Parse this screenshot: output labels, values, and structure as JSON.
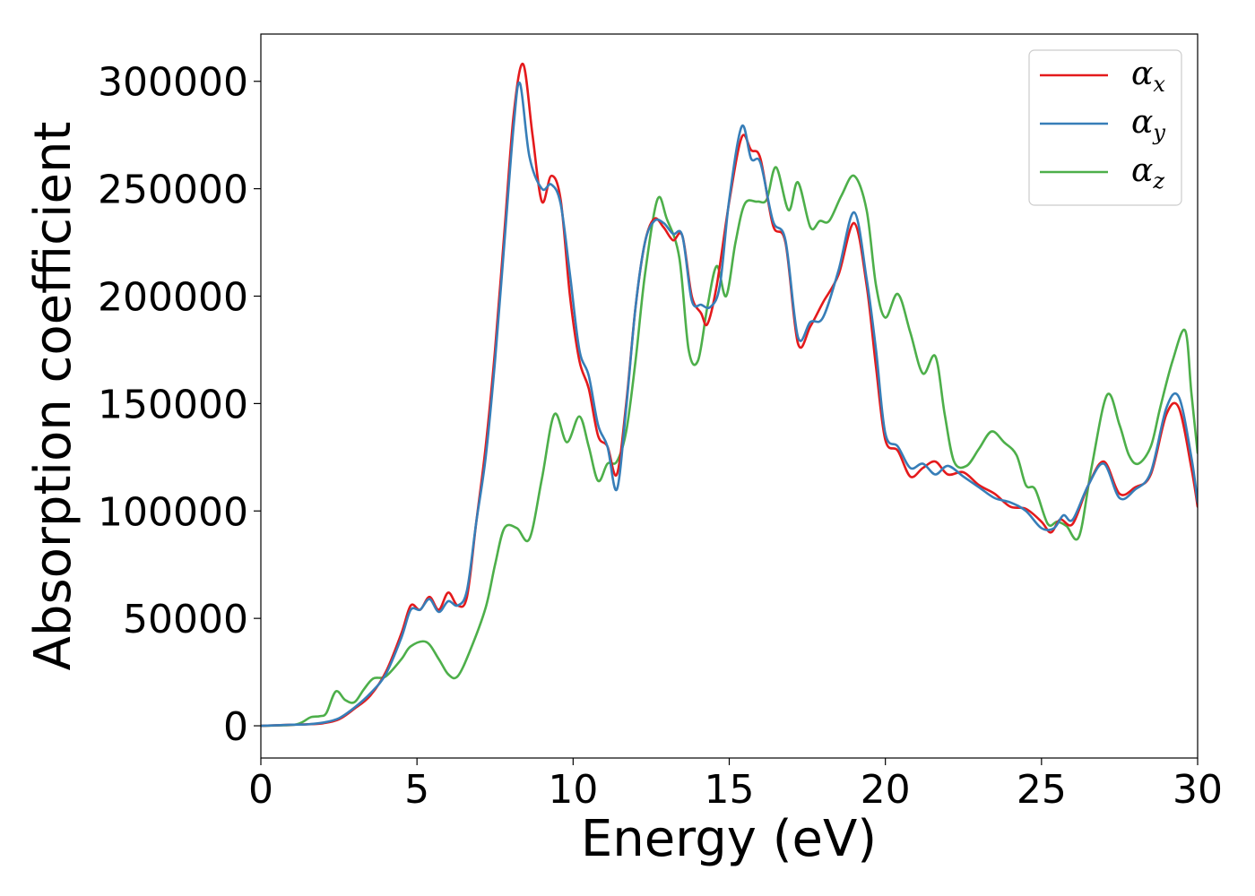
{
  "chart_data": {
    "type": "line",
    "title": "",
    "xlabel": "Energy (eV)",
    "ylabel": "Absorption coefficient",
    "xlim": [
      0,
      30
    ],
    "ylim": [
      -15000,
      322000
    ],
    "x_ticks": [
      0,
      5,
      10,
      15,
      20,
      25,
      30
    ],
    "y_ticks": [
      0,
      50000,
      100000,
      150000,
      200000,
      250000,
      300000
    ],
    "grid": false,
    "legend_position": "top-right",
    "series": [
      {
        "name": "α_x",
        "legend_base": "α",
        "legend_sub": "x",
        "color": "#e41a1c",
        "points": [
          [
            0,
            0
          ],
          [
            1,
            500
          ],
          [
            1.5,
            700
          ],
          [
            2,
            1200
          ],
          [
            2.5,
            3000
          ],
          [
            3,
            8000
          ],
          [
            3.5,
            14000
          ],
          [
            4,
            25000
          ],
          [
            4.5,
            43000
          ],
          [
            4.8,
            56000
          ],
          [
            5.1,
            54000
          ],
          [
            5.4,
            60000
          ],
          [
            5.7,
            54000
          ],
          [
            6,
            62000
          ],
          [
            6.3,
            56000
          ],
          [
            6.6,
            60000
          ],
          [
            6.9,
            95000
          ],
          [
            7.2,
            130000
          ],
          [
            7.5,
            175000
          ],
          [
            7.8,
            230000
          ],
          [
            8.1,
            285000
          ],
          [
            8.4,
            308000
          ],
          [
            8.7,
            275000
          ],
          [
            9,
            244000
          ],
          [
            9.3,
            256000
          ],
          [
            9.6,
            245000
          ],
          [
            9.9,
            200000
          ],
          [
            10.2,
            170000
          ],
          [
            10.5,
            157000
          ],
          [
            10.8,
            135000
          ],
          [
            11.1,
            130000
          ],
          [
            11.4,
            117000
          ],
          [
            11.7,
            150000
          ],
          [
            12,
            195000
          ],
          [
            12.3,
            225000
          ],
          [
            12.6,
            236000
          ],
          [
            12.9,
            232000
          ],
          [
            13.2,
            226000
          ],
          [
            13.5,
            228000
          ],
          [
            13.8,
            200000
          ],
          [
            14.1,
            192000
          ],
          [
            14.3,
            187000
          ],
          [
            14.6,
            205000
          ],
          [
            15,
            244000
          ],
          [
            15.4,
            274000
          ],
          [
            15.7,
            268000
          ],
          [
            16,
            264000
          ],
          [
            16.4,
            233000
          ],
          [
            16.8,
            225000
          ],
          [
            17.2,
            178000
          ],
          [
            17.6,
            186000
          ],
          [
            18,
            197000
          ],
          [
            18.5,
            210000
          ],
          [
            19,
            234000
          ],
          [
            19.4,
            205000
          ],
          [
            19.7,
            167000
          ],
          [
            20,
            133000
          ],
          [
            20.4,
            128000
          ],
          [
            20.8,
            116000
          ],
          [
            21.2,
            120000
          ],
          [
            21.6,
            123000
          ],
          [
            22,
            117000
          ],
          [
            22.5,
            118000
          ],
          [
            23,
            112000
          ],
          [
            23.5,
            108000
          ],
          [
            24,
            102000
          ],
          [
            24.5,
            101000
          ],
          [
            25,
            95000
          ],
          [
            25.3,
            90000
          ],
          [
            25.6,
            96000
          ],
          [
            26,
            94000
          ],
          [
            26.5,
            112000
          ],
          [
            27,
            123000
          ],
          [
            27.5,
            108000
          ],
          [
            28,
            111000
          ],
          [
            28.5,
            117000
          ],
          [
            29,
            145000
          ],
          [
            29.4,
            148000
          ],
          [
            29.8,
            120000
          ],
          [
            30,
            102000
          ]
        ]
      },
      {
        "name": "α_y",
        "legend_base": "α",
        "legend_sub": "y",
        "color": "#377eb8",
        "points": [
          [
            0,
            0
          ],
          [
            1,
            500
          ],
          [
            1.5,
            700
          ],
          [
            2,
            1500
          ],
          [
            2.5,
            3500
          ],
          [
            3,
            8500
          ],
          [
            3.5,
            15000
          ],
          [
            4,
            24000
          ],
          [
            4.5,
            41000
          ],
          [
            4.8,
            54000
          ],
          [
            5.1,
            54000
          ],
          [
            5.4,
            59000
          ],
          [
            5.7,
            53000
          ],
          [
            6,
            58000
          ],
          [
            6.3,
            56000
          ],
          [
            6.6,
            63000
          ],
          [
            6.9,
            95000
          ],
          [
            7.2,
            125000
          ],
          [
            7.5,
            170000
          ],
          [
            7.8,
            225000
          ],
          [
            8.1,
            280000
          ],
          [
            8.3,
            299000
          ],
          [
            8.6,
            265000
          ],
          [
            9,
            250000
          ],
          [
            9.3,
            252000
          ],
          [
            9.6,
            243000
          ],
          [
            9.9,
            210000
          ],
          [
            10.2,
            175000
          ],
          [
            10.5,
            163000
          ],
          [
            10.8,
            140000
          ],
          [
            11.1,
            130000
          ],
          [
            11.4,
            110000
          ],
          [
            11.7,
            148000
          ],
          [
            12,
            195000
          ],
          [
            12.3,
            225000
          ],
          [
            12.6,
            235000
          ],
          [
            12.9,
            234000
          ],
          [
            13.2,
            229000
          ],
          [
            13.5,
            228000
          ],
          [
            13.8,
            198000
          ],
          [
            14.1,
            196000
          ],
          [
            14.4,
            195000
          ],
          [
            14.7,
            205000
          ],
          [
            15,
            245000
          ],
          [
            15.4,
            279000
          ],
          [
            15.7,
            264000
          ],
          [
            16,
            262000
          ],
          [
            16.4,
            235000
          ],
          [
            16.8,
            226000
          ],
          [
            17.2,
            181000
          ],
          [
            17.6,
            188000
          ],
          [
            18,
            190000
          ],
          [
            18.5,
            212000
          ],
          [
            19,
            239000
          ],
          [
            19.4,
            208000
          ],
          [
            19.7,
            175000
          ],
          [
            20,
            136000
          ],
          [
            20.4,
            130000
          ],
          [
            20.8,
            120000
          ],
          [
            21.2,
            122000
          ],
          [
            21.6,
            117000
          ],
          [
            22,
            121000
          ],
          [
            22.5,
            116000
          ],
          [
            23,
            111000
          ],
          [
            23.5,
            106000
          ],
          [
            24,
            104000
          ],
          [
            24.5,
            100000
          ],
          [
            25,
            92000
          ],
          [
            25.4,
            92000
          ],
          [
            25.7,
            98000
          ],
          [
            26,
            96000
          ],
          [
            26.5,
            112000
          ],
          [
            27,
            122000
          ],
          [
            27.5,
            106000
          ],
          [
            28,
            110000
          ],
          [
            28.5,
            118000
          ],
          [
            29,
            148000
          ],
          [
            29.4,
            153000
          ],
          [
            29.8,
            125000
          ],
          [
            30,
            104000
          ]
        ]
      },
      {
        "name": "α_z",
        "legend_base": "α",
        "legend_sub": "z",
        "color": "#4daf4a",
        "points": [
          [
            0,
            0
          ],
          [
            1,
            400
          ],
          [
            1.3,
            1500
          ],
          [
            1.6,
            4000
          ],
          [
            1.9,
            4500
          ],
          [
            2.1,
            6000
          ],
          [
            2.4,
            16000
          ],
          [
            2.7,
            12000
          ],
          [
            3,
            11000
          ],
          [
            3.3,
            17000
          ],
          [
            3.6,
            22000
          ],
          [
            4,
            23000
          ],
          [
            4.5,
            31000
          ],
          [
            4.8,
            37000
          ],
          [
            5.3,
            39000
          ],
          [
            5.7,
            31000
          ],
          [
            6,
            24000
          ],
          [
            6.3,
            23000
          ],
          [
            6.7,
            35000
          ],
          [
            7.2,
            55000
          ],
          [
            7.5,
            75000
          ],
          [
            7.8,
            92000
          ],
          [
            8.2,
            92000
          ],
          [
            8.6,
            87000
          ],
          [
            9,
            115000
          ],
          [
            9.4,
            145000
          ],
          [
            9.8,
            132000
          ],
          [
            10.2,
            144000
          ],
          [
            10.5,
            130000
          ],
          [
            10.8,
            114000
          ],
          [
            11.1,
            122000
          ],
          [
            11.4,
            123000
          ],
          [
            11.7,
            137000
          ],
          [
            12,
            170000
          ],
          [
            12.3,
            210000
          ],
          [
            12.7,
            245000
          ],
          [
            13,
            236000
          ],
          [
            13.4,
            218000
          ],
          [
            13.7,
            175000
          ],
          [
            14,
            170000
          ],
          [
            14.3,
            195000
          ],
          [
            14.6,
            214000
          ],
          [
            14.9,
            200000
          ],
          [
            15.2,
            225000
          ],
          [
            15.5,
            243000
          ],
          [
            15.9,
            244000
          ],
          [
            16.2,
            245000
          ],
          [
            16.5,
            260000
          ],
          [
            16.9,
            240000
          ],
          [
            17.2,
            253000
          ],
          [
            17.6,
            232000
          ],
          [
            17.9,
            235000
          ],
          [
            18.2,
            235000
          ],
          [
            18.6,
            247000
          ],
          [
            19,
            256000
          ],
          [
            19.4,
            240000
          ],
          [
            19.7,
            205000
          ],
          [
            20,
            190000
          ],
          [
            20.4,
            201000
          ],
          [
            20.8,
            183000
          ],
          [
            21.2,
            164000
          ],
          [
            21.6,
            172000
          ],
          [
            21.9,
            145000
          ],
          [
            22.2,
            123000
          ],
          [
            22.6,
            121000
          ],
          [
            23,
            129000
          ],
          [
            23.4,
            137000
          ],
          [
            23.8,
            132000
          ],
          [
            24.2,
            126000
          ],
          [
            24.5,
            112000
          ],
          [
            24.8,
            110000
          ],
          [
            25.2,
            94000
          ],
          [
            25.5,
            95000
          ],
          [
            25.8,
            93000
          ],
          [
            26.2,
            88000
          ],
          [
            26.6,
            120000
          ],
          [
            27.1,
            154000
          ],
          [
            27.5,
            140000
          ],
          [
            27.8,
            126000
          ],
          [
            28.1,
            122000
          ],
          [
            28.5,
            130000
          ],
          [
            28.8,
            148000
          ],
          [
            29.2,
            170000
          ],
          [
            29.6,
            184000
          ],
          [
            29.8,
            155000
          ],
          [
            30,
            127000
          ]
        ]
      }
    ]
  }
}
